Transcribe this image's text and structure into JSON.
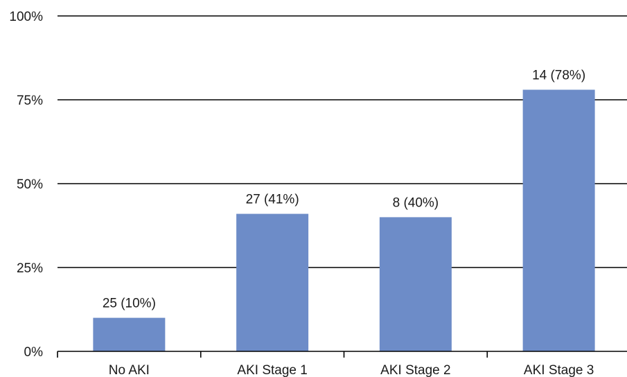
{
  "chart_data": {
    "type": "bar",
    "categories": [
      "No AKI",
      "AKI Stage 1",
      "AKI Stage 2",
      "AKI Stage 3"
    ],
    "values": [
      10,
      41,
      40,
      78
    ],
    "data_labels": [
      "25 (10%)",
      "27 (41%)",
      "8 (40%)",
      "14 (78%)"
    ],
    "y_ticks": [
      "0%",
      "25%",
      "50%",
      "75%",
      "100%"
    ],
    "ylim": [
      0,
      100
    ],
    "grid": true,
    "bar_color": "#6d8cc8"
  }
}
